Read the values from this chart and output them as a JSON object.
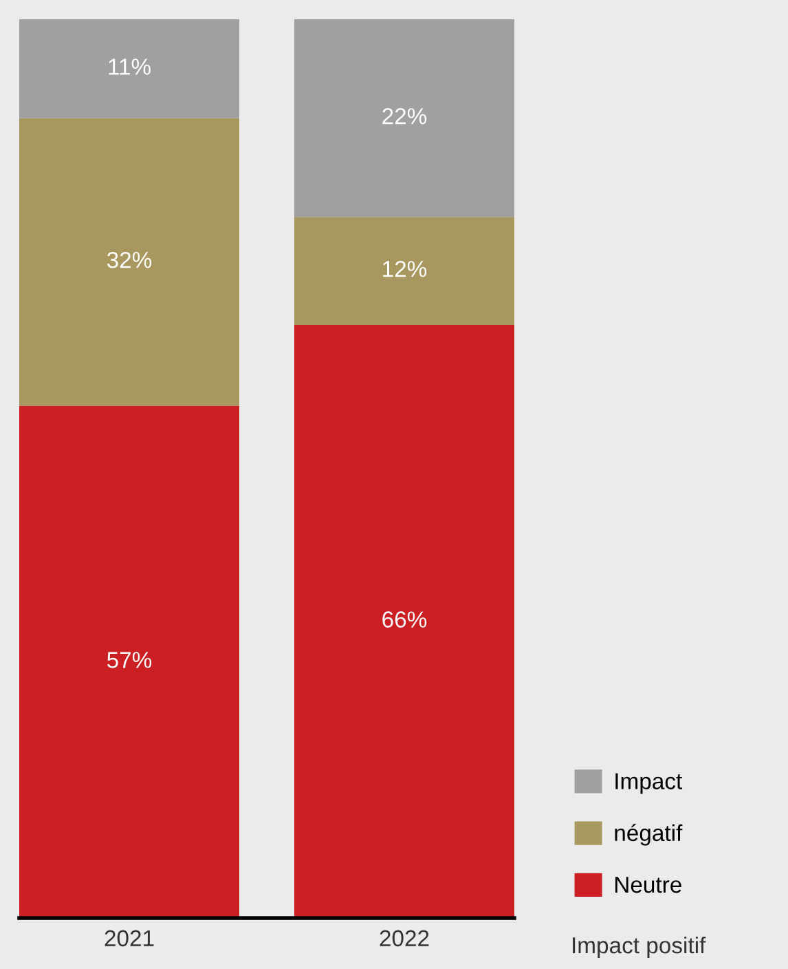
{
  "chart_data": {
    "type": "bar",
    "stacked": true,
    "categories": [
      "2021",
      "2022"
    ],
    "ylim": [
      0,
      100
    ],
    "series": [
      {
        "name": "Neutre",
        "color": "#cc1f24",
        "values": [
          57,
          66
        ],
        "value_labels": [
          "57%",
          "66%"
        ]
      },
      {
        "name": "négatif",
        "color": "#a8975e",
        "values": [
          32,
          12
        ],
        "value_labels": [
          "32%",
          "12%"
        ]
      },
      {
        "name": "Impact",
        "color": "#a0a0a0",
        "values": [
          11,
          22
        ],
        "value_labels": [
          "11%",
          "22%"
        ]
      }
    ],
    "legend": "right",
    "annotations": [
      "Impact positif"
    ]
  }
}
